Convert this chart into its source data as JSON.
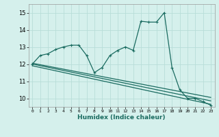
{
  "xlabel": "Humidex (Indice chaleur)",
  "background_color": "#d5f0ec",
  "grid_color": "#b8ddd8",
  "line_color": "#1a6b60",
  "xlim": [
    -0.5,
    23.5
  ],
  "ylim": [
    9.5,
    15.5
  ],
  "yticks": [
    10,
    11,
    12,
    13,
    14,
    15
  ],
  "xticks": [
    0,
    1,
    2,
    3,
    4,
    5,
    6,
    7,
    8,
    9,
    10,
    11,
    12,
    13,
    14,
    15,
    16,
    17,
    18,
    19,
    20,
    21,
    22,
    23
  ],
  "xtick_labels": [
    "0",
    "1",
    "2",
    "3",
    "4",
    "5",
    "6",
    "7",
    "8",
    "9",
    "10",
    "11",
    "12",
    "13",
    "14",
    "15",
    "16",
    "17",
    "18",
    "19",
    "20",
    "21",
    "22",
    "23"
  ],
  "main_x": [
    0,
    1,
    2,
    3,
    4,
    5,
    6,
    7,
    8,
    9,
    10,
    11,
    12,
    13,
    14,
    15,
    16,
    17,
    18,
    19,
    20,
    21,
    22,
    23
  ],
  "main_y": [
    12.0,
    12.5,
    12.6,
    12.85,
    13.0,
    13.1,
    13.1,
    12.5,
    11.5,
    11.8,
    12.5,
    12.8,
    13.0,
    12.8,
    14.5,
    14.45,
    14.45,
    15.0,
    11.8,
    10.5,
    10.0,
    10.0,
    9.8,
    9.6
  ],
  "trend1_x": [
    0,
    23
  ],
  "trend1_y": [
    12.05,
    10.05
  ],
  "trend2_x": [
    0,
    23
  ],
  "trend2_y": [
    12.0,
    9.85
  ],
  "trend3_x": [
    0,
    23
  ],
  "trend3_y": [
    11.9,
    9.65
  ],
  "figsize": [
    3.2,
    2.0
  ],
  "dpi": 100
}
